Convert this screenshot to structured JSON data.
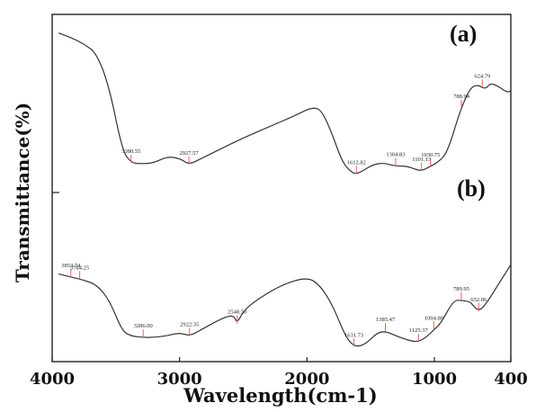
{
  "chart_data": {
    "type": "line",
    "xlabel": "Wavelength(cm-1)",
    "ylabel": "Transmittance(%)",
    "xlim": [
      4000,
      400
    ],
    "x_ticks": [
      "4000",
      "3000",
      "2000",
      "1000",
      "400"
    ],
    "series": [
      {
        "name": "(a)",
        "x": [
          3950,
          3850,
          3750,
          3650,
          3550,
          3450,
          3380,
          3300,
          3200,
          3100,
          3000,
          2927,
          2850,
          2700,
          2500,
          2300,
          2100,
          1950,
          1880,
          1800,
          1720,
          1650,
          1612,
          1560,
          1480,
          1400,
          1304,
          1220,
          1150,
          1101,
          1050,
          980,
          900,
          800,
          720,
          660,
          600,
          560,
          500,
          430,
          400
        ],
        "y": [
          95,
          92,
          88,
          82,
          60,
          20,
          12,
          11.5,
          12,
          16,
          15,
          11,
          14,
          20,
          28,
          35,
          42,
          48,
          45,
          30,
          12,
          6,
          5,
          7,
          11,
          12,
          10,
          10,
          8,
          7,
          9,
          12,
          18,
          45,
          60,
          62,
          59,
          63,
          61,
          57,
          58
        ],
        "peaks": [
          {
            "label": "3380.55",
            "x": 3380
          },
          {
            "label": "2927.57",
            "x": 2927
          },
          {
            "label": "1612.82",
            "x": 1612
          },
          {
            "label": "1304.83",
            "x": 1304
          },
          {
            "label": "1101.13",
            "x": 1101
          },
          {
            "label": "1030.75",
            "x": 1030
          },
          {
            "label": "788.94",
            "x": 788
          },
          {
            "label": "624.79",
            "x": 624
          }
        ]
      },
      {
        "name": "(b)",
        "x": [
          3950,
          3850,
          3750,
          3650,
          3550,
          3450,
          3380,
          3300,
          3200,
          3100,
          3000,
          2922,
          2850,
          2700,
          2580,
          2548,
          2500,
          2400,
          2200,
          2000,
          1900,
          1800,
          1700,
          1631,
          1550,
          1450,
          1385,
          1300,
          1200,
          1125,
          1050,
          1004,
          950,
          850,
          790,
          720,
          700,
          652,
          600,
          500,
          400
        ],
        "y": [
          52,
          50,
          48,
          45,
          35,
          15,
          12,
          11,
          11,
          12,
          14,
          12,
          15,
          22,
          26,
          20,
          28,
          35,
          45,
          50,
          45,
          32,
          12,
          5,
          6,
          14,
          15,
          12,
          9,
          8,
          12,
          16,
          20,
          35,
          35,
          34,
          32,
          28,
          32,
          45,
          58
        ],
        "peaks": [
          {
            "label": "3853.74",
            "x": 3853
          },
          {
            "label": "3784.25",
            "x": 3784
          },
          {
            "label": "3286.00",
            "x": 3286
          },
          {
            "label": "2922.35",
            "x": 2922
          },
          {
            "label": "2548.50",
            "x": 2548
          },
          {
            "label": "1631.73",
            "x": 1631
          },
          {
            "label": "1385.47",
            "x": 1385
          },
          {
            "label": "1125.37",
            "x": 1125
          },
          {
            "label": "1004.80",
            "x": 1004
          },
          {
            "label": "789.95",
            "x": 789
          },
          {
            "label": "652.06",
            "x": 652
          }
        ]
      }
    ]
  }
}
